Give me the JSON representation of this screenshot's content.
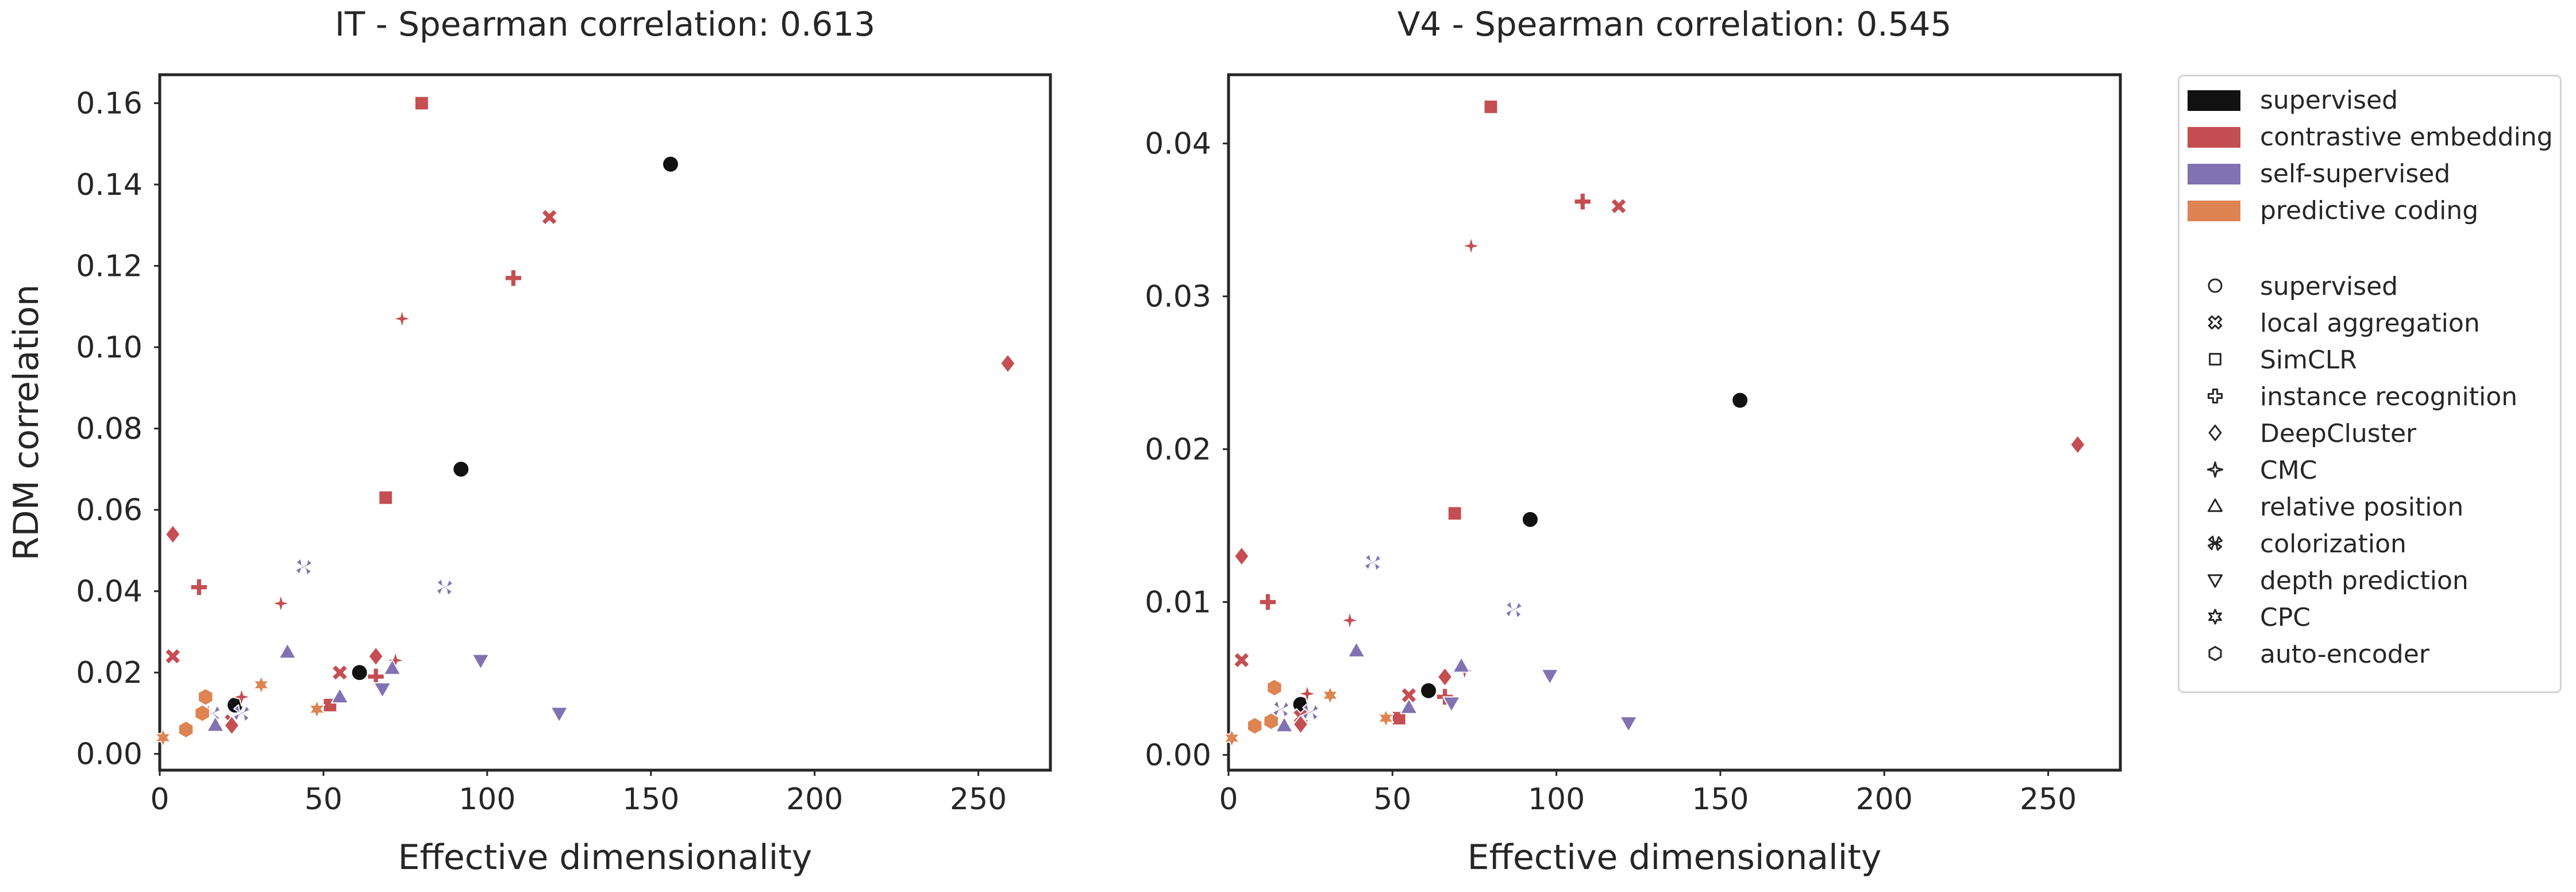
{
  "chart_data": [
    {
      "type": "scatter",
      "title": "IT - Spearman correlation: 0.613",
      "xlabel": "Effective dimensionality",
      "ylabel": "RDM correlation",
      "xlim": [
        0,
        272
      ],
      "ylim": [
        -0.004,
        0.167
      ],
      "xticks": [
        0,
        50,
        100,
        150,
        200,
        250
      ],
      "yticks": [
        0.0,
        0.02,
        0.04,
        0.06,
        0.08,
        0.1,
        0.12,
        0.14,
        0.16
      ],
      "ytick_labels": [
        "0.00",
        "0.02",
        "0.04",
        "0.06",
        "0.08",
        "0.10",
        "0.12",
        "0.14",
        "0.16"
      ],
      "grid": false,
      "points": [
        {
          "x": 156,
          "y": 0.145,
          "category": "supervised",
          "model": "supervised"
        },
        {
          "x": 92,
          "y": 0.07,
          "category": "supervised",
          "model": "supervised"
        },
        {
          "x": 61,
          "y": 0.02,
          "category": "supervised",
          "model": "supervised"
        },
        {
          "x": 23,
          "y": 0.012,
          "category": "supervised",
          "model": "supervised"
        },
        {
          "x": 80,
          "y": 0.16,
          "category": "contrastive embedding",
          "model": "SimCLR"
        },
        {
          "x": 69,
          "y": 0.063,
          "category": "contrastive embedding",
          "model": "SimCLR"
        },
        {
          "x": 52,
          "y": 0.012,
          "category": "contrastive embedding",
          "model": "SimCLR"
        },
        {
          "x": 119,
          "y": 0.132,
          "category": "contrastive embedding",
          "model": "local aggregation"
        },
        {
          "x": 4,
          "y": 0.024,
          "category": "contrastive embedding",
          "model": "local aggregation"
        },
        {
          "x": 55,
          "y": 0.02,
          "category": "contrastive embedding",
          "model": "local aggregation"
        },
        {
          "x": 22,
          "y": 0.008,
          "category": "contrastive embedding",
          "model": "local aggregation"
        },
        {
          "x": 108,
          "y": 0.117,
          "category": "contrastive embedding",
          "model": "instance recognition"
        },
        {
          "x": 12,
          "y": 0.041,
          "category": "contrastive embedding",
          "model": "instance recognition"
        },
        {
          "x": 66,
          "y": 0.019,
          "category": "contrastive embedding",
          "model": "instance recognition"
        },
        {
          "x": 74,
          "y": 0.107,
          "category": "contrastive embedding",
          "model": "CMC"
        },
        {
          "x": 37,
          "y": 0.037,
          "category": "contrastive embedding",
          "model": "CMC"
        },
        {
          "x": 72,
          "y": 0.023,
          "category": "contrastive embedding",
          "model": "CMC"
        },
        {
          "x": 25,
          "y": 0.014,
          "category": "contrastive embedding",
          "model": "CMC"
        },
        {
          "x": 259,
          "y": 0.096,
          "category": "contrastive embedding",
          "model": "DeepCluster"
        },
        {
          "x": 4,
          "y": 0.054,
          "category": "contrastive embedding",
          "model": "DeepCluster"
        },
        {
          "x": 66,
          "y": 0.024,
          "category": "contrastive embedding",
          "model": "DeepCluster"
        },
        {
          "x": 22,
          "y": 0.007,
          "category": "contrastive embedding",
          "model": "DeepCluster"
        },
        {
          "x": 44,
          "y": 0.046,
          "category": "self-supervised",
          "model": "colorization"
        },
        {
          "x": 87,
          "y": 0.041,
          "category": "self-supervised",
          "model": "colorization"
        },
        {
          "x": 16,
          "y": 0.01,
          "category": "self-supervised",
          "model": "colorization"
        },
        {
          "x": 25,
          "y": 0.01,
          "category": "self-supervised",
          "model": "colorization"
        },
        {
          "x": 39,
          "y": 0.025,
          "category": "self-supervised",
          "model": "relative position"
        },
        {
          "x": 55,
          "y": 0.014,
          "category": "self-supervised",
          "model": "relative position"
        },
        {
          "x": 71,
          "y": 0.021,
          "category": "self-supervised",
          "model": "relative position"
        },
        {
          "x": 17,
          "y": 0.007,
          "category": "self-supervised",
          "model": "relative position"
        },
        {
          "x": 98,
          "y": 0.023,
          "category": "self-supervised",
          "model": "depth prediction"
        },
        {
          "x": 122,
          "y": 0.01,
          "category": "self-supervised",
          "model": "depth prediction"
        },
        {
          "x": 68,
          "y": 0.016,
          "category": "self-supervised",
          "model": "depth prediction"
        },
        {
          "x": 14,
          "y": 0.014,
          "category": "predictive coding",
          "model": "auto-encoder"
        },
        {
          "x": 13,
          "y": 0.01,
          "category": "predictive coding",
          "model": "auto-encoder"
        },
        {
          "x": 8,
          "y": 0.006,
          "category": "predictive coding",
          "model": "auto-encoder"
        },
        {
          "x": 31,
          "y": 0.017,
          "category": "predictive coding",
          "model": "CPC"
        },
        {
          "x": 48,
          "y": 0.011,
          "category": "predictive coding",
          "model": "CPC"
        },
        {
          "x": 1,
          "y": 0.004,
          "category": "predictive coding",
          "model": "CPC"
        }
      ]
    },
    {
      "type": "scatter",
      "title": "V4 - Spearman correlation: 0.545",
      "xlabel": "Effective dimensionality",
      "ylabel": "",
      "xlim": [
        0,
        272
      ],
      "ylim": [
        -0.001,
        0.0445
      ],
      "xticks": [
        0,
        50,
        100,
        150,
        200,
        250
      ],
      "yticks": [
        0.0,
        0.01,
        0.02,
        0.03,
        0.04
      ],
      "ytick_labels": [
        "0.00",
        "0.01",
        "0.02",
        "0.03",
        "0.04"
      ],
      "grid": false,
      "points": [
        {
          "x": 156,
          "y": 0.0232,
          "category": "supervised",
          "model": "supervised"
        },
        {
          "x": 92,
          "y": 0.0154,
          "category": "supervised",
          "model": "supervised"
        },
        {
          "x": 61,
          "y": 0.0042,
          "category": "supervised",
          "model": "supervised"
        },
        {
          "x": 22,
          "y": 0.0033,
          "category": "supervised",
          "model": "supervised"
        },
        {
          "x": 80,
          "y": 0.0424,
          "category": "contrastive embedding",
          "model": "SimCLR"
        },
        {
          "x": 69,
          "y": 0.0158,
          "category": "contrastive embedding",
          "model": "SimCLR"
        },
        {
          "x": 52,
          "y": 0.0024,
          "category": "contrastive embedding",
          "model": "SimCLR"
        },
        {
          "x": 119,
          "y": 0.0359,
          "category": "contrastive embedding",
          "model": "local aggregation"
        },
        {
          "x": 4,
          "y": 0.0062,
          "category": "contrastive embedding",
          "model": "local aggregation"
        },
        {
          "x": 55,
          "y": 0.0039,
          "category": "contrastive embedding",
          "model": "local aggregation"
        },
        {
          "x": 22,
          "y": 0.0025,
          "category": "contrastive embedding",
          "model": "local aggregation"
        },
        {
          "x": 108,
          "y": 0.0362,
          "category": "contrastive embedding",
          "model": "instance recognition"
        },
        {
          "x": 12,
          "y": 0.01,
          "category": "contrastive embedding",
          "model": "instance recognition"
        },
        {
          "x": 66,
          "y": 0.0038,
          "category": "contrastive embedding",
          "model": "instance recognition"
        },
        {
          "x": 74,
          "y": 0.0333,
          "category": "contrastive embedding",
          "model": "CMC"
        },
        {
          "x": 37,
          "y": 0.0088,
          "category": "contrastive embedding",
          "model": "CMC"
        },
        {
          "x": 72,
          "y": 0.0055,
          "category": "contrastive embedding",
          "model": "CMC"
        },
        {
          "x": 24,
          "y": 0.004,
          "category": "contrastive embedding",
          "model": "CMC"
        },
        {
          "x": 259,
          "y": 0.0203,
          "category": "contrastive embedding",
          "model": "DeepCluster"
        },
        {
          "x": 4,
          "y": 0.013,
          "category": "contrastive embedding",
          "model": "DeepCluster"
        },
        {
          "x": 66,
          "y": 0.0051,
          "category": "contrastive embedding",
          "model": "DeepCluster"
        },
        {
          "x": 22,
          "y": 0.002,
          "category": "contrastive embedding",
          "model": "DeepCluster"
        },
        {
          "x": 44,
          "y": 0.0126,
          "category": "self-supervised",
          "model": "colorization"
        },
        {
          "x": 87,
          "y": 0.0095,
          "category": "self-supervised",
          "model": "colorization"
        },
        {
          "x": 16,
          "y": 0.003,
          "category": "self-supervised",
          "model": "colorization"
        },
        {
          "x": 25,
          "y": 0.0028,
          "category": "self-supervised",
          "model": "colorization"
        },
        {
          "x": 39,
          "y": 0.0068,
          "category": "self-supervised",
          "model": "relative position"
        },
        {
          "x": 55,
          "y": 0.0031,
          "category": "self-supervised",
          "model": "relative position"
        },
        {
          "x": 71,
          "y": 0.0058,
          "category": "self-supervised",
          "model": "relative position"
        },
        {
          "x": 17,
          "y": 0.0019,
          "category": "self-supervised",
          "model": "relative position"
        },
        {
          "x": 98,
          "y": 0.0052,
          "category": "self-supervised",
          "model": "depth prediction"
        },
        {
          "x": 122,
          "y": 0.0021,
          "category": "self-supervised",
          "model": "depth prediction"
        },
        {
          "x": 68,
          "y": 0.0034,
          "category": "self-supervised",
          "model": "depth prediction"
        },
        {
          "x": 14,
          "y": 0.0044,
          "category": "predictive coding",
          "model": "auto-encoder"
        },
        {
          "x": 13,
          "y": 0.0022,
          "category": "predictive coding",
          "model": "auto-encoder"
        },
        {
          "x": 8,
          "y": 0.0019,
          "category": "predictive coding",
          "model": "auto-encoder"
        },
        {
          "x": 31,
          "y": 0.0039,
          "category": "predictive coding",
          "model": "CPC"
        },
        {
          "x": 48,
          "y": 0.0024,
          "category": "predictive coding",
          "model": "CPC"
        },
        {
          "x": 1,
          "y": 0.0011,
          "category": "predictive coding",
          "model": "CPC"
        }
      ]
    }
  ],
  "legend": {
    "placement": "right, outside",
    "categories": [
      {
        "label": "supervised",
        "color": "#111111"
      },
      {
        "label": "contrastive embedding",
        "color": "#c44e52"
      },
      {
        "label": "self-supervised",
        "color": "#8172b3"
      },
      {
        "label": "predictive coding",
        "color": "#dd8452"
      }
    ],
    "models": [
      {
        "label": "supervised",
        "marker": "circle"
      },
      {
        "label": "local aggregation",
        "marker": "x"
      },
      {
        "label": "SimCLR",
        "marker": "square"
      },
      {
        "label": "instance recognition",
        "marker": "plus"
      },
      {
        "label": "DeepCluster",
        "marker": "diamond"
      },
      {
        "label": "CMC",
        "marker": "star4"
      },
      {
        "label": "relative position",
        "marker": "triangle-up"
      },
      {
        "label": "colorization",
        "marker": "tri-x"
      },
      {
        "label": "depth prediction",
        "marker": "triangle-down"
      },
      {
        "label": "CPC",
        "marker": "star6"
      },
      {
        "label": "auto-encoder",
        "marker": "hexagon"
      }
    ]
  }
}
